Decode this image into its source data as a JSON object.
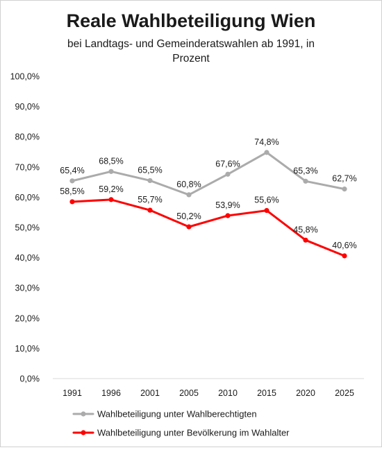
{
  "chart_data": {
    "type": "line",
    "title": "Reale Wahlbeteiligung Wien",
    "subtitle_lines": [
      "bei Landtags- und Gemeinderatswahlen ab 1991, in",
      "Prozent"
    ],
    "categories": [
      "1991",
      "1996",
      "2001",
      "2005",
      "2010",
      "2015",
      "2020",
      "2025"
    ],
    "y_ticks": [
      "0,0%",
      "10,0%",
      "20,0%",
      "30,0%",
      "40,0%",
      "50,0%",
      "60,0%",
      "70,0%",
      "80,0%",
      "90,0%",
      "100,0%"
    ],
    "ylim": [
      0,
      100
    ],
    "grid": false,
    "legend_position": "bottom",
    "series": [
      {
        "name": "Wahlbeteiligung unter Wahlberechtigten",
        "color": "#ababab",
        "values": [
          65.4,
          68.5,
          65.5,
          60.8,
          67.6,
          74.8,
          65.3,
          62.7
        ],
        "labels": [
          "65,4%",
          "68,5%",
          "65,5%",
          "60,8%",
          "67,6%",
          "74,8%",
          "65,3%",
          "62,7%"
        ]
      },
      {
        "name": "Wahlbeteiligung unter Bevölkerung im Wahlalter",
        "color": "#ff0000",
        "values": [
          58.5,
          59.2,
          55.7,
          50.2,
          53.9,
          55.6,
          45.8,
          40.6
        ],
        "labels": [
          "58,5%",
          "59,2%",
          "55,7%",
          "50,2%",
          "53,9%",
          "55,6%",
          "45,8%",
          "40,6%"
        ]
      }
    ]
  }
}
